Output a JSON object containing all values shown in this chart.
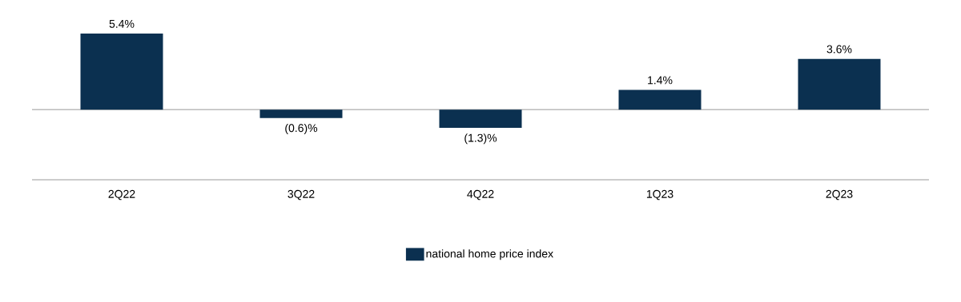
{
  "chart_data": {
    "type": "bar",
    "categories": [
      "2Q22",
      "3Q22",
      "4Q22",
      "1Q23",
      "2Q23"
    ],
    "series": [
      {
        "name": "national home price index",
        "color": "#0b3050",
        "values": [
          5.4,
          -0.6,
          -1.3,
          1.4,
          3.6
        ],
        "value_labels": [
          "5.4%",
          "(0.6)%",
          "(1.3)%",
          "1.4%",
          "3.6%"
        ]
      }
    ],
    "tick_labels": "x",
    "legend": "bottom"
  }
}
